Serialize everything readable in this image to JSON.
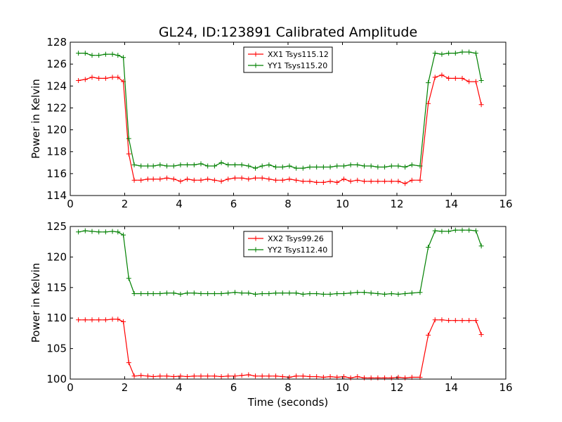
{
  "figure": {
    "title": "GL24, ID:123891 Calibrated Amplitude",
    "colors": {
      "xx": "#ff0000",
      "yy": "#008000"
    }
  },
  "chart_data": [
    {
      "type": "line",
      "title": "GL24, ID:123891 Calibrated Amplitude",
      "xlabel": "",
      "ylabel": "Power in Kelvin",
      "xlim": [
        0,
        16
      ],
      "ylim": [
        114,
        128
      ],
      "xticks": [
        0,
        2,
        4,
        6,
        8,
        10,
        12,
        14,
        16
      ],
      "yticks": [
        114,
        116,
        118,
        120,
        122,
        124,
        126,
        128
      ],
      "legend_position": "top-center",
      "grid": false,
      "x": [
        0.3,
        0.55,
        0.8,
        1.05,
        1.3,
        1.55,
        1.75,
        1.95,
        2.15,
        2.35,
        2.6,
        2.85,
        3.05,
        3.3,
        3.55,
        3.8,
        4.05,
        4.3,
        4.55,
        4.8,
        5.05,
        5.3,
        5.55,
        5.8,
        6.05,
        6.3,
        6.55,
        6.8,
        7.05,
        7.3,
        7.55,
        7.8,
        8.05,
        8.3,
        8.55,
        8.8,
        9.05,
        9.3,
        9.55,
        9.8,
        10.05,
        10.3,
        10.55,
        10.8,
        11.05,
        11.3,
        11.55,
        11.8,
        12.05,
        12.3,
        12.55,
        12.85,
        13.15,
        13.4,
        13.65,
        13.9,
        14.15,
        14.4,
        14.65,
        14.9,
        15.1
      ],
      "series": [
        {
          "name": "XX1 Tsys115.12",
          "color": "#ff0000",
          "values": [
            124.5,
            124.6,
            124.8,
            124.7,
            124.7,
            124.8,
            124.8,
            124.4,
            117.8,
            115.4,
            115.4,
            115.5,
            115.5,
            115.5,
            115.6,
            115.5,
            115.3,
            115.5,
            115.4,
            115.4,
            115.5,
            115.4,
            115.3,
            115.5,
            115.6,
            115.6,
            115.5,
            115.6,
            115.6,
            115.5,
            115.4,
            115.4,
            115.5,
            115.4,
            115.3,
            115.3,
            115.2,
            115.2,
            115.3,
            115.2,
            115.5,
            115.3,
            115.4,
            115.3,
            115.3,
            115.3,
            115.3,
            115.3,
            115.3,
            115.1,
            115.4,
            115.4,
            122.4,
            124.8,
            125.0,
            124.7,
            124.7,
            124.7,
            124.4,
            124.4,
            122.3
          ]
        },
        {
          "name": "YY1 Tsys115.20",
          "color": "#008000",
          "values": [
            127.0,
            127.0,
            126.8,
            126.8,
            126.9,
            126.9,
            126.8,
            126.6,
            119.2,
            116.8,
            116.7,
            116.7,
            116.7,
            116.8,
            116.7,
            116.7,
            116.8,
            116.8,
            116.8,
            116.9,
            116.7,
            116.7,
            117.0,
            116.8,
            116.8,
            116.8,
            116.7,
            116.5,
            116.7,
            116.8,
            116.6,
            116.6,
            116.7,
            116.5,
            116.5,
            116.6,
            116.6,
            116.6,
            116.6,
            116.7,
            116.7,
            116.8,
            116.8,
            116.7,
            116.7,
            116.6,
            116.6,
            116.7,
            116.7,
            116.6,
            116.8,
            116.7,
            124.3,
            127.0,
            126.9,
            127.0,
            127.0,
            127.1,
            127.1,
            127.0,
            124.5
          ]
        }
      ]
    },
    {
      "type": "line",
      "title": "",
      "xlabel": "Time (seconds)",
      "ylabel": "Power in Kelvin",
      "xlim": [
        0,
        16
      ],
      "ylim": [
        100,
        125
      ],
      "xticks": [
        0,
        2,
        4,
        6,
        8,
        10,
        12,
        14,
        16
      ],
      "yticks": [
        100,
        105,
        110,
        115,
        120,
        125
      ],
      "legend_position": "top-center",
      "grid": false,
      "x": [
        0.3,
        0.55,
        0.8,
        1.05,
        1.3,
        1.55,
        1.75,
        1.95,
        2.15,
        2.35,
        2.6,
        2.85,
        3.05,
        3.3,
        3.55,
        3.8,
        4.05,
        4.3,
        4.55,
        4.8,
        5.05,
        5.3,
        5.55,
        5.8,
        6.05,
        6.3,
        6.55,
        6.8,
        7.05,
        7.3,
        7.55,
        7.8,
        8.05,
        8.3,
        8.55,
        8.8,
        9.05,
        9.3,
        9.55,
        9.8,
        10.05,
        10.3,
        10.55,
        10.8,
        11.05,
        11.3,
        11.55,
        11.8,
        12.05,
        12.3,
        12.55,
        12.85,
        13.15,
        13.4,
        13.65,
        13.9,
        14.15,
        14.4,
        14.65,
        14.9,
        15.1
      ],
      "series": [
        {
          "name": "XX2 Tsys99.26",
          "color": "#ff0000",
          "values": [
            109.7,
            109.7,
            109.7,
            109.7,
            109.7,
            109.8,
            109.8,
            109.4,
            102.7,
            100.5,
            100.6,
            100.5,
            100.4,
            100.5,
            100.5,
            100.4,
            100.5,
            100.4,
            100.5,
            100.5,
            100.5,
            100.5,
            100.4,
            100.5,
            100.5,
            100.6,
            100.7,
            100.5,
            100.5,
            100.5,
            100.5,
            100.4,
            100.3,
            100.5,
            100.5,
            100.4,
            100.4,
            100.3,
            100.4,
            100.3,
            100.4,
            100.2,
            100.4,
            100.2,
            100.2,
            100.2,
            100.2,
            100.2,
            100.3,
            100.2,
            100.3,
            100.3,
            107.2,
            109.7,
            109.7,
            109.6,
            109.6,
            109.6,
            109.6,
            109.6,
            107.3
          ]
        },
        {
          "name": "YY2 Tsys112.40",
          "color": "#008000",
          "values": [
            124.1,
            124.3,
            124.2,
            124.1,
            124.1,
            124.2,
            124.1,
            123.6,
            116.5,
            114.0,
            114.0,
            114.0,
            114.0,
            114.0,
            114.1,
            114.1,
            113.9,
            114.1,
            114.1,
            114.0,
            114.0,
            114.0,
            114.0,
            114.1,
            114.2,
            114.1,
            114.1,
            113.9,
            114.0,
            114.0,
            114.1,
            114.1,
            114.1,
            114.1,
            113.9,
            114.0,
            114.0,
            113.9,
            113.9,
            114.0,
            114.0,
            114.1,
            114.2,
            114.2,
            114.1,
            114.0,
            113.9,
            114.0,
            113.9,
            114.0,
            114.1,
            114.2,
            121.6,
            124.3,
            124.2,
            124.2,
            124.4,
            124.4,
            124.4,
            124.3,
            121.8
          ]
        }
      ]
    }
  ]
}
